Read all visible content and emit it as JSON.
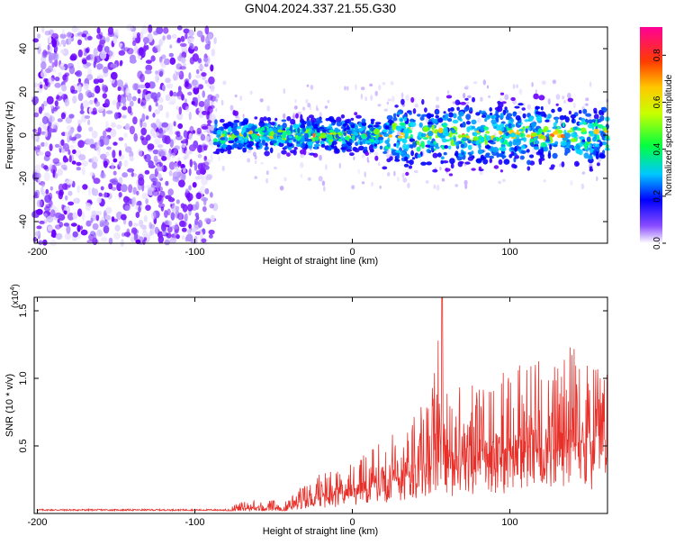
{
  "title": "GN04.2024.337.21.55.G30",
  "chart_data": [
    {
      "type": "heatmap",
      "xlabel": "Height of straight line (km)",
      "ylabel": "Frequency (Hz)",
      "xlim": [
        -202,
        162
      ],
      "ylim": [
        -50,
        50
      ],
      "xticks": [
        -200,
        -100,
        0,
        100
      ],
      "yticks": [
        -40,
        -20,
        0,
        20,
        40
      ],
      "colorbar": {
        "label": "Normalized spectral amplitude",
        "range": [
          0,
          0.92
        ],
        "ticks": [
          "0.0",
          "0.2",
          "0.4",
          "0.6",
          "0.8"
        ],
        "colors": [
          "#ffffff",
          "#6a00ff",
          "#0000ff",
          "#00c8ff",
          "#00ff50",
          "#c8ff00",
          "#ffc800",
          "#ff3c00",
          "#ff0096"
        ]
      },
      "description_values": {
        "noise_region_x": [
          -202,
          -87
        ],
        "signal_band_center_hz": 0,
        "signal_band_halfwidth_hz": 8
      }
    },
    {
      "type": "line",
      "xlabel": "Height of straight line (km)",
      "ylabel": "SNR (10 * v/v)",
      "scale_note": "(x10",
      "scale_exp": "4",
      "xlim": [
        -202,
        162
      ],
      "ylim": [
        0,
        1.6
      ],
      "xticks": [
        -200,
        -100,
        0,
        100
      ],
      "yticks": [
        "0.5",
        "1.0",
        "1.5"
      ],
      "line_color": "#e8302a",
      "series": [
        {
          "x": [
            -200,
            -150,
            -100,
            -85,
            -80,
            -75,
            -70,
            -60,
            -50,
            -45,
            -40,
            -30,
            -20,
            -10,
            0,
            10,
            20,
            30,
            40,
            50,
            57,
            60,
            70,
            80,
            90,
            100,
            110,
            120,
            130,
            140,
            150,
            160
          ],
          "y": [
            0.02,
            0.02,
            0.02,
            0.02,
            0.03,
            0.07,
            0.12,
            0.1,
            0.11,
            0.04,
            0.15,
            0.22,
            0.3,
            0.35,
            0.38,
            0.45,
            0.55,
            0.65,
            0.8,
            0.85,
            1.6,
            0.9,
            0.95,
            1.0,
            1.05,
            1.1,
            1.1,
            1.2,
            1.15,
            1.25,
            1.1,
            1.05
          ]
        }
      ]
    }
  ]
}
